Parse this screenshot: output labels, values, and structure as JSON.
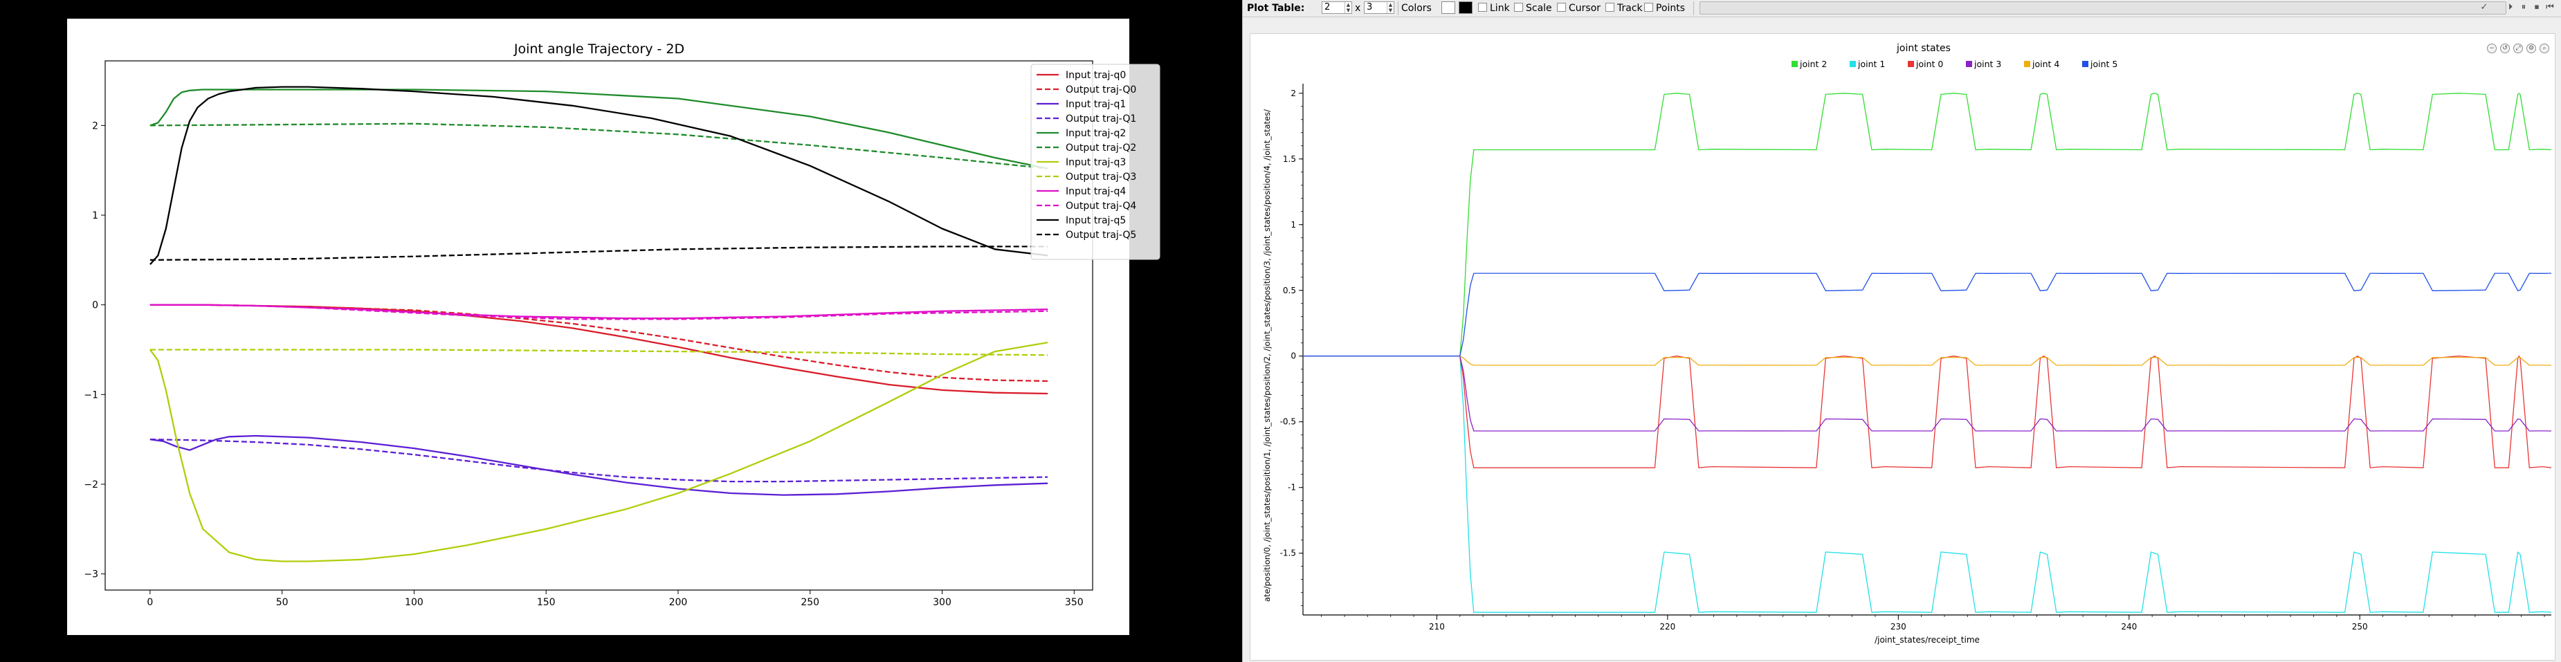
{
  "left_plot": {
    "title": "Joint angle Trajectory - 2D",
    "colors": {
      "q0": "#d91d2a",
      "q1": "#5b1fd4",
      "q2": "#1e8b2a",
      "q3": "#b2cd0a",
      "q4": "#df10c8",
      "q5": "#000000"
    }
  },
  "toolbar": {
    "plot_table_label": "Plot Table:",
    "rows": "2",
    "x_label": "x",
    "cols": "3",
    "colors_label": "Colors",
    "link_label": "Link",
    "scale_label": "Scale",
    "cursor_label": "Cursor",
    "track_label": "Track",
    "points_label": "Points"
  },
  "right_plot": {
    "title": "joint states",
    "ylabel": "ate/position/0, /joint_states/position/1, /joint_states/position/2, /joint_states/position/3, /joint_states/position/4, /joint_states/",
    "xlabel": "/joint_states/receipt_time"
  },
  "chart_data": [
    {
      "type": "line",
      "title": "Joint angle Trajectory - 2D",
      "xlabel": "",
      "ylabel": "",
      "xlim": [
        -17,
        357
      ],
      "ylim": [
        -3.18,
        2.72
      ],
      "x_ticks": [
        0,
        50,
        100,
        150,
        200,
        250,
        300,
        350
      ],
      "y_ticks": [
        -3,
        -2,
        -1,
        0,
        1,
        2
      ],
      "legend_position": "top-right",
      "grid": false,
      "series": [
        {
          "name": "Input traj-q0",
          "joint": "q0",
          "style": "solid",
          "x": [
            0,
            20,
            40,
            60,
            80,
            100,
            120,
            140,
            160,
            180,
            200,
            220,
            240,
            260,
            280,
            300,
            320,
            340
          ],
          "y": [
            0,
            0,
            -0.01,
            -0.02,
            -0.04,
            -0.07,
            -0.12,
            -0.18,
            -0.26,
            -0.36,
            -0.47,
            -0.59,
            -0.7,
            -0.8,
            -0.89,
            -0.95,
            -0.98,
            -0.99
          ]
        },
        {
          "name": "Output traj-Q0",
          "joint": "q0",
          "style": "dashed",
          "x": [
            0,
            20,
            40,
            60,
            80,
            100,
            120,
            140,
            160,
            180,
            200,
            220,
            240,
            260,
            280,
            300,
            320,
            340
          ],
          "y": [
            0,
            0,
            -0.01,
            -0.02,
            -0.04,
            -0.06,
            -0.1,
            -0.15,
            -0.21,
            -0.29,
            -0.38,
            -0.48,
            -0.58,
            -0.67,
            -0.75,
            -0.81,
            -0.84,
            -0.85
          ]
        },
        {
          "name": "Input traj-q1",
          "joint": "q1",
          "style": "solid",
          "x": [
            0,
            5,
            10,
            15,
            20,
            25,
            30,
            40,
            60,
            80,
            100,
            120,
            140,
            160,
            180,
            200,
            220,
            240,
            260,
            280,
            300,
            320,
            340
          ],
          "y": [
            -1.5,
            -1.52,
            -1.58,
            -1.62,
            -1.56,
            -1.5,
            -1.47,
            -1.46,
            -1.48,
            -1.53,
            -1.6,
            -1.69,
            -1.79,
            -1.89,
            -1.98,
            -2.05,
            -2.1,
            -2.12,
            -2.11,
            -2.08,
            -2.04,
            -2.01,
            -1.99
          ]
        },
        {
          "name": "Output traj-Q1",
          "joint": "q1",
          "style": "dashed",
          "x": [
            0,
            20,
            40,
            60,
            80,
            100,
            120,
            140,
            160,
            180,
            200,
            220,
            240,
            260,
            280,
            300,
            320,
            340
          ],
          "y": [
            -1.5,
            -1.51,
            -1.53,
            -1.56,
            -1.61,
            -1.67,
            -1.74,
            -1.81,
            -1.87,
            -1.92,
            -1.95,
            -1.97,
            -1.97,
            -1.96,
            -1.95,
            -1.94,
            -1.93,
            -1.92
          ]
        },
        {
          "name": "Input traj-q2",
          "joint": "q2",
          "style": "solid",
          "x": [
            0,
            3,
            6,
            9,
            12,
            15,
            20,
            30,
            50,
            80,
            100,
            150,
            200,
            250,
            280,
            300,
            320,
            340
          ],
          "y": [
            2.0,
            2.03,
            2.15,
            2.3,
            2.37,
            2.39,
            2.4,
            2.4,
            2.4,
            2.4,
            2.4,
            2.38,
            2.3,
            2.1,
            1.92,
            1.78,
            1.64,
            1.52
          ]
        },
        {
          "name": "Output traj-Q2",
          "joint": "q2",
          "style": "dashed",
          "x": [
            0,
            50,
            100,
            150,
            200,
            250,
            300,
            340
          ],
          "y": [
            2.0,
            2.01,
            2.02,
            1.98,
            1.9,
            1.78,
            1.64,
            1.52
          ]
        },
        {
          "name": "Input traj-q3",
          "joint": "q3",
          "style": "solid",
          "x": [
            0,
            3,
            6,
            10,
            15,
            20,
            30,
            40,
            50,
            60,
            80,
            100,
            120,
            150,
            180,
            200,
            220,
            250,
            280,
            300,
            320,
            340
          ],
          "y": [
            -0.5,
            -0.62,
            -0.95,
            -1.5,
            -2.1,
            -2.5,
            -2.76,
            -2.84,
            -2.86,
            -2.86,
            -2.84,
            -2.78,
            -2.68,
            -2.5,
            -2.28,
            -2.1,
            -1.88,
            -1.52,
            -1.08,
            -0.78,
            -0.52,
            -0.42
          ]
        },
        {
          "name": "Output traj-Q3",
          "joint": "q3",
          "style": "dashed",
          "x": [
            0,
            50,
            100,
            150,
            200,
            250,
            300,
            340
          ],
          "y": [
            -0.5,
            -0.5,
            -0.5,
            -0.51,
            -0.52,
            -0.53,
            -0.55,
            -0.56
          ]
        },
        {
          "name": "Input traj-q4",
          "joint": "q4",
          "style": "solid",
          "x": [
            0,
            20,
            40,
            60,
            80,
            100,
            120,
            140,
            160,
            180,
            200,
            220,
            240,
            260,
            280,
            300,
            320,
            340
          ],
          "y": [
            0,
            0,
            -0.01,
            -0.03,
            -0.05,
            -0.08,
            -0.11,
            -0.13,
            -0.14,
            -0.15,
            -0.15,
            -0.14,
            -0.13,
            -0.11,
            -0.09,
            -0.07,
            -0.06,
            -0.05
          ]
        },
        {
          "name": "Output traj-Q4",
          "joint": "q4",
          "style": "dashed",
          "x": [
            0,
            20,
            40,
            60,
            80,
            100,
            120,
            140,
            160,
            180,
            200,
            220,
            240,
            260,
            280,
            300,
            320,
            340
          ],
          "y": [
            0,
            0,
            -0.01,
            -0.03,
            -0.06,
            -0.09,
            -0.12,
            -0.14,
            -0.16,
            -0.16,
            -0.16,
            -0.15,
            -0.14,
            -0.12,
            -0.1,
            -0.09,
            -0.08,
            -0.07
          ]
        },
        {
          "name": "Input traj-q5",
          "joint": "q5",
          "style": "solid",
          "x": [
            0,
            3,
            6,
            9,
            12,
            15,
            18,
            22,
            26,
            30,
            40,
            50,
            60,
            80,
            100,
            130,
            160,
            190,
            220,
            250,
            280,
            300,
            320,
            340
          ],
          "y": [
            0.45,
            0.55,
            0.85,
            1.3,
            1.75,
            2.05,
            2.2,
            2.3,
            2.35,
            2.38,
            2.42,
            2.43,
            2.43,
            2.41,
            2.38,
            2.32,
            2.22,
            2.08,
            1.88,
            1.55,
            1.15,
            0.85,
            0.62,
            0.55
          ]
        },
        {
          "name": "Output traj-Q5",
          "joint": "q5",
          "style": "dashed",
          "x": [
            0,
            50,
            100,
            150,
            200,
            250,
            300,
            340
          ],
          "y": [
            0.5,
            0.51,
            0.54,
            0.58,
            0.62,
            0.64,
            0.65,
            0.65
          ]
        }
      ]
    },
    {
      "type": "line",
      "title": "joint states",
      "xlabel": "/joint_states/receipt_time",
      "ylabel": "ate/position/0, /joint_states/position/1, /joint_states/position/2, /joint_states/position/3, /joint_states/position/4, /joint_states/",
      "xlim": [
        204.2,
        258.3
      ],
      "ylim": [
        -1.97,
        2.02
      ],
      "x_ticks": [
        210,
        220,
        230,
        240,
        250
      ],
      "y_ticks": [
        -1.5,
        -1,
        -0.5,
        0,
        0.5,
        1,
        1.5,
        2
      ],
      "y_tick_labels": [
        "-1.5",
        "-1",
        "-0.5",
        "0",
        "0.5",
        "1",
        "1.5",
        "2"
      ],
      "legend_position": "top",
      "grid": false,
      "series": [
        {
          "name": "joint 2",
          "color": "#33dd33",
          "rest": 1.57,
          "hi": 2.0
        },
        {
          "name": "joint 1",
          "color": "#22e0e8",
          "rest": -1.95,
          "hi": -1.5
        },
        {
          "name": "joint 0",
          "color": "#e83535",
          "rest": -0.85,
          "hi": 0.0
        },
        {
          "name": "joint 3",
          "color": "#8a22c8",
          "rest": -0.57,
          "hi": -0.48
        },
        {
          "name": "joint 4",
          "color": "#f0ac10",
          "rest": -0.07,
          "hi": -0.01
        },
        {
          "name": "joint 5",
          "color": "#2050e8",
          "rest": 0.63,
          "hi": 0.5
        }
      ],
      "pre_x": [
        204.2,
        211.0
      ],
      "pre_y": 0,
      "transition_end": 211.6,
      "pulses": [
        [
          219.5,
          221.3
        ],
        [
          226.5,
          228.8
        ],
        [
          231.5,
          233.3
        ],
        [
          235.8,
          236.8
        ],
        [
          240.6,
          241.6
        ],
        [
          249.4,
          250.4
        ],
        [
          252.8,
          255.8
        ],
        [
          256.5,
          257.3
        ]
      ]
    }
  ]
}
